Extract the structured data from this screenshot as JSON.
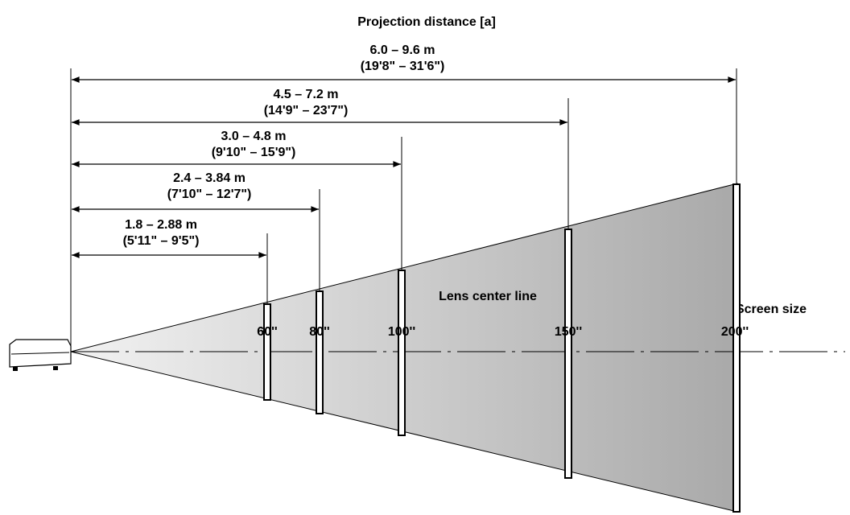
{
  "title": "Projection distance [a]",
  "lens_label": "Lens center line",
  "screen_label": "Screen size",
  "screens": [
    {
      "size": "60''",
      "metric": "1.8 – 2.88 m",
      "imperial": "(5'11\" – 9'5\")"
    },
    {
      "size": "80''",
      "metric": "2.4 – 3.84 m",
      "imperial": "(7'10\" – 12'7\")"
    },
    {
      "size": "100''",
      "metric": "3.0 – 4.8 m",
      "imperial": "(9'10\" – 15'9\")"
    },
    {
      "size": "150''",
      "metric": "4.5 – 7.2 m",
      "imperial": "(14'9\" – 23'7\")"
    },
    {
      "size": "200''",
      "metric": "6.0 – 9.6 m",
      "imperial": "(19'8\" – 31'6\")"
    }
  ]
}
